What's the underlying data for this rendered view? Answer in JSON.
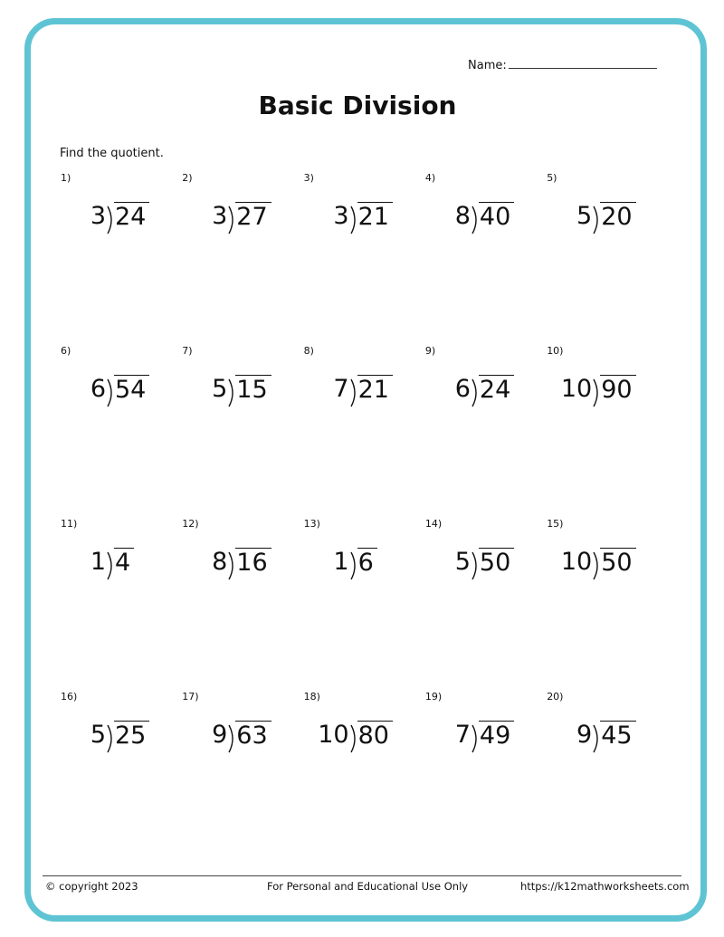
{
  "header": {
    "name_label": "Name:",
    "title": "Basic Division",
    "instructions": "Find the quotient."
  },
  "colors": {
    "border": "#5ec4d4"
  },
  "problems": [
    {
      "label": "1)",
      "divisor": "3",
      "dividend": "24"
    },
    {
      "label": "2)",
      "divisor": "3",
      "dividend": "27"
    },
    {
      "label": "3)",
      "divisor": "3",
      "dividend": "21"
    },
    {
      "label": "4)",
      "divisor": "8",
      "dividend": "40"
    },
    {
      "label": "5)",
      "divisor": "5",
      "dividend": "20"
    },
    {
      "label": "6)",
      "divisor": "6",
      "dividend": "54"
    },
    {
      "label": "7)",
      "divisor": "5",
      "dividend": "15"
    },
    {
      "label": "8)",
      "divisor": "7",
      "dividend": "21"
    },
    {
      "label": "9)",
      "divisor": "6",
      "dividend": "24"
    },
    {
      "label": "10)",
      "divisor": "10",
      "dividend": "90"
    },
    {
      "label": "11)",
      "divisor": "1",
      "dividend": "4"
    },
    {
      "label": "12)",
      "divisor": "8",
      "dividend": "16"
    },
    {
      "label": "13)",
      "divisor": "1",
      "dividend": "6"
    },
    {
      "label": "14)",
      "divisor": "5",
      "dividend": "50"
    },
    {
      "label": "15)",
      "divisor": "10",
      "dividend": "50"
    },
    {
      "label": "16)",
      "divisor": "5",
      "dividend": "25"
    },
    {
      "label": "17)",
      "divisor": "9",
      "dividend": "63"
    },
    {
      "label": "18)",
      "divisor": "10",
      "dividend": "80"
    },
    {
      "label": "19)",
      "divisor": "7",
      "dividend": "49"
    },
    {
      "label": "20)",
      "divisor": "9",
      "dividend": "45"
    }
  ],
  "footer": {
    "copyright": "© copyright 2023",
    "usage": "For Personal and Educational Use Only",
    "url": "https://k12mathworksheets.com"
  }
}
